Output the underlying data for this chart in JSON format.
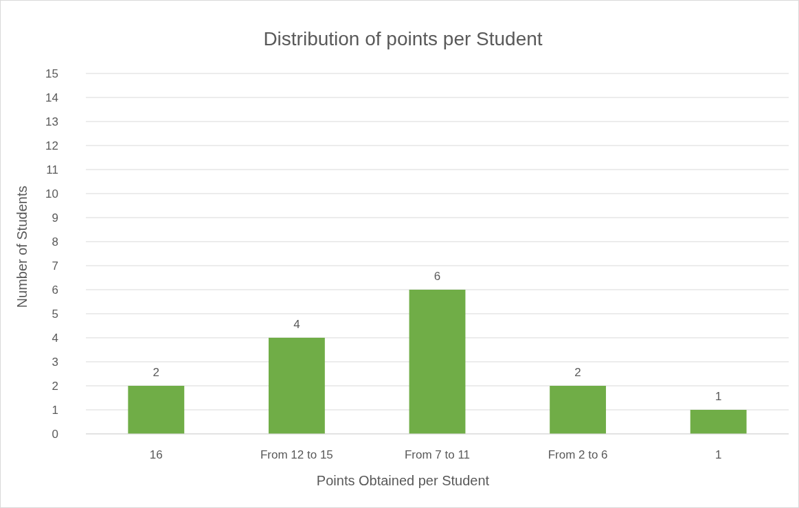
{
  "chart_data": {
    "type": "bar",
    "title": "Distribution of points per Student",
    "xlabel": "Points Obtained per Student",
    "ylabel": "Number of Students",
    "categories": [
      "16",
      "From 12 to 15",
      "From 7 to 11",
      "From 2 to 6",
      "1"
    ],
    "values": [
      2,
      4,
      6,
      2,
      1
    ],
    "color": "#70ad47",
    "ylim": [
      0,
      15
    ],
    "yticks": [
      0,
      1,
      2,
      3,
      4,
      5,
      6,
      7,
      8,
      9,
      10,
      11,
      12,
      13,
      14,
      15
    ],
    "grid": "y",
    "data_labels": true
  }
}
